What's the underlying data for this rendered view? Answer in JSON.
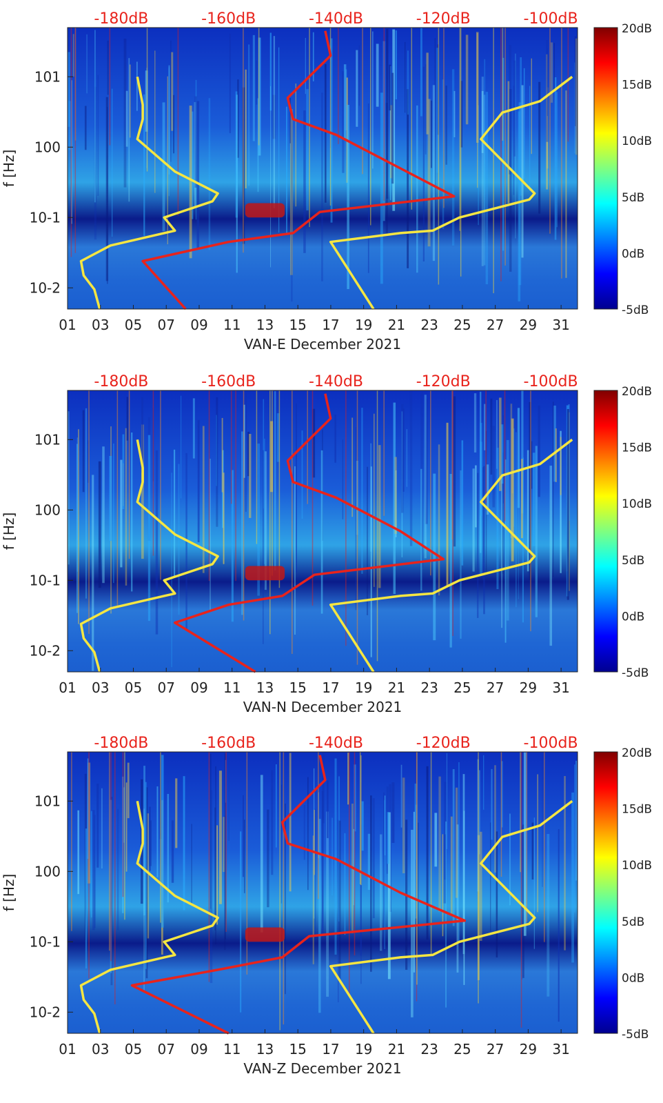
{
  "colors": {
    "noise_model_line": "#f5e642",
    "psd_curve": "#e8231c",
    "top_axis_text": "#e8231c",
    "tick_text": "#222222"
  },
  "chart_data": [
    {
      "type": "heatmap",
      "station": "VAN-E",
      "xlabel": "VAN-E December 2021",
      "ylabel": "f [Hz]",
      "x_ticks": [
        "01",
        "03",
        "05",
        "07",
        "09",
        "11",
        "13",
        "15",
        "17",
        "19",
        "21",
        "23",
        "25",
        "27",
        "29",
        "31"
      ],
      "x_range_days": [
        1,
        32
      ],
      "y_scale": "log",
      "y_ticks": [
        "10^-2",
        "10^-1",
        "10^0",
        "10^1"
      ],
      "y_range_hz": [
        0.005,
        50
      ],
      "top_axis_ticks": [
        "-180dB",
        "-160dB",
        "-140dB",
        "-120dB",
        "-100dB"
      ],
      "top_axis_range_db": [
        -190,
        -95
      ],
      "colorbar_ticks": [
        "20dB",
        "15dB",
        "10dB",
        "5dB",
        "0dB",
        "-5dB"
      ],
      "colorbar_range_db": [
        -5,
        20
      ],
      "yellow_left_curve": [
        [
          -184,
          0.005
        ],
        [
          -185,
          0.0095
        ],
        [
          -187,
          0.015
        ],
        [
          -187.5,
          0.024
        ],
        [
          -182,
          0.04
        ],
        [
          -172,
          0.06
        ],
        [
          -170,
          0.065
        ],
        [
          -172,
          0.1
        ],
        [
          -163,
          0.17
        ],
        [
          -162,
          0.22
        ],
        [
          -170,
          0.45
        ],
        [
          -177,
          1.3
        ],
        [
          -176,
          2.5
        ],
        [
          -176,
          4
        ],
        [
          -177,
          10
        ]
      ],
      "yellow_right_curve": [
        [
          -133,
          0.005
        ],
        [
          -141,
          0.045
        ],
        [
          -128,
          0.06
        ],
        [
          -122,
          0.065
        ],
        [
          -117,
          0.1
        ],
        [
          -104,
          0.18
        ],
        [
          -103,
          0.22
        ],
        [
          -113,
          1.3
        ],
        [
          -109,
          3.1
        ],
        [
          -102,
          4.5
        ],
        [
          -96,
          10
        ]
      ],
      "red_psd_curve": [
        [
          -168,
          0.005
        ],
        [
          -176,
          0.024
        ],
        [
          -160,
          0.045
        ],
        [
          -148,
          0.06
        ],
        [
          -143,
          0.12
        ],
        [
          -118,
          0.2
        ],
        [
          -128,
          0.5
        ],
        [
          -140,
          1.5
        ],
        [
          -148,
          2.5
        ],
        [
          -149,
          5
        ],
        [
          -145,
          10
        ],
        [
          -141,
          20
        ],
        [
          -142,
          45
        ]
      ]
    },
    {
      "type": "heatmap",
      "station": "VAN-N",
      "xlabel": "VAN-N December 2021",
      "ylabel": "f [Hz]",
      "x_ticks": [
        "01",
        "03",
        "05",
        "07",
        "09",
        "11",
        "13",
        "15",
        "17",
        "19",
        "21",
        "23",
        "25",
        "27",
        "29",
        "31"
      ],
      "x_range_days": [
        1,
        32
      ],
      "y_scale": "log",
      "y_ticks": [
        "10^-2",
        "10^-1",
        "10^0",
        "10^1"
      ],
      "y_range_hz": [
        0.005,
        50
      ],
      "top_axis_ticks": [
        "-180dB",
        "-160dB",
        "-140dB",
        "-120dB",
        "-100dB"
      ],
      "top_axis_range_db": [
        -190,
        -95
      ],
      "colorbar_ticks": [
        "20dB",
        "15dB",
        "10dB",
        "5dB",
        "0dB",
        "-5dB"
      ],
      "colorbar_range_db": [
        -5,
        20
      ],
      "yellow_left_curve": [
        [
          -184,
          0.005
        ],
        [
          -185,
          0.0095
        ],
        [
          -187,
          0.015
        ],
        [
          -187.5,
          0.024
        ],
        [
          -182,
          0.04
        ],
        [
          -172,
          0.06
        ],
        [
          -170,
          0.065
        ],
        [
          -172,
          0.1
        ],
        [
          -163,
          0.17
        ],
        [
          -162,
          0.22
        ],
        [
          -170,
          0.45
        ],
        [
          -177,
          1.3
        ],
        [
          -176,
          2.5
        ],
        [
          -176,
          4
        ],
        [
          -177,
          10
        ]
      ],
      "yellow_right_curve": [
        [
          -133,
          0.005
        ],
        [
          -141,
          0.045
        ],
        [
          -128,
          0.06
        ],
        [
          -122,
          0.065
        ],
        [
          -117,
          0.1
        ],
        [
          -104,
          0.18
        ],
        [
          -103,
          0.22
        ],
        [
          -113,
          1.3
        ],
        [
          -109,
          3.1
        ],
        [
          -102,
          4.5
        ],
        [
          -96,
          10
        ]
      ],
      "red_psd_curve": [
        [
          -155,
          0.005
        ],
        [
          -170,
          0.025
        ],
        [
          -160,
          0.045
        ],
        [
          -150,
          0.06
        ],
        [
          -144,
          0.12
        ],
        [
          -120,
          0.2
        ],
        [
          -128,
          0.5
        ],
        [
          -140,
          1.5
        ],
        [
          -148,
          2.5
        ],
        [
          -149,
          5
        ],
        [
          -145,
          10
        ],
        [
          -141,
          20
        ],
        [
          -142,
          45
        ]
      ]
    },
    {
      "type": "heatmap",
      "station": "VAN-Z",
      "xlabel": "VAN-Z December 2021",
      "ylabel": "f [Hz]",
      "x_ticks": [
        "01",
        "03",
        "05",
        "07",
        "09",
        "11",
        "13",
        "15",
        "17",
        "19",
        "21",
        "23",
        "25",
        "27",
        "29",
        "31"
      ],
      "x_range_days": [
        1,
        32
      ],
      "y_scale": "log",
      "y_ticks": [
        "10^-2",
        "10^-1",
        "10^0",
        "10^1"
      ],
      "y_range_hz": [
        0.005,
        50
      ],
      "top_axis_ticks": [
        "-180dB",
        "-160dB",
        "-140dB",
        "-120dB",
        "-100dB"
      ],
      "top_axis_range_db": [
        -190,
        -95
      ],
      "colorbar_ticks": [
        "20dB",
        "15dB",
        "10dB",
        "5dB",
        "0dB",
        "-5dB"
      ],
      "colorbar_range_db": [
        -5,
        20
      ],
      "yellow_left_curve": [
        [
          -184,
          0.005
        ],
        [
          -185,
          0.0095
        ],
        [
          -187,
          0.015
        ],
        [
          -187.5,
          0.024
        ],
        [
          -182,
          0.04
        ],
        [
          -172,
          0.06
        ],
        [
          -170,
          0.065
        ],
        [
          -172,
          0.1
        ],
        [
          -163,
          0.17
        ],
        [
          -162,
          0.22
        ],
        [
          -170,
          0.45
        ],
        [
          -177,
          1.3
        ],
        [
          -176,
          2.5
        ],
        [
          -176,
          4
        ],
        [
          -177,
          10
        ]
      ],
      "yellow_right_curve": [
        [
          -133,
          0.005
        ],
        [
          -141,
          0.045
        ],
        [
          -128,
          0.06
        ],
        [
          -122,
          0.065
        ],
        [
          -117,
          0.1
        ],
        [
          -104,
          0.18
        ],
        [
          -103,
          0.22
        ],
        [
          -113,
          1.3
        ],
        [
          -109,
          3.1
        ],
        [
          -102,
          4.5
        ],
        [
          -96,
          10
        ]
      ],
      "red_psd_curve": [
        [
          -160,
          0.005
        ],
        [
          -178,
          0.024
        ],
        [
          -162,
          0.04
        ],
        [
          -150,
          0.06
        ],
        [
          -145,
          0.12
        ],
        [
          -116,
          0.2
        ],
        [
          -128,
          0.5
        ],
        [
          -140,
          1.5
        ],
        [
          -149,
          2.5
        ],
        [
          -150,
          5
        ],
        [
          -146,
          10
        ],
        [
          -142,
          20
        ],
        [
          -143,
          45
        ]
      ]
    }
  ]
}
